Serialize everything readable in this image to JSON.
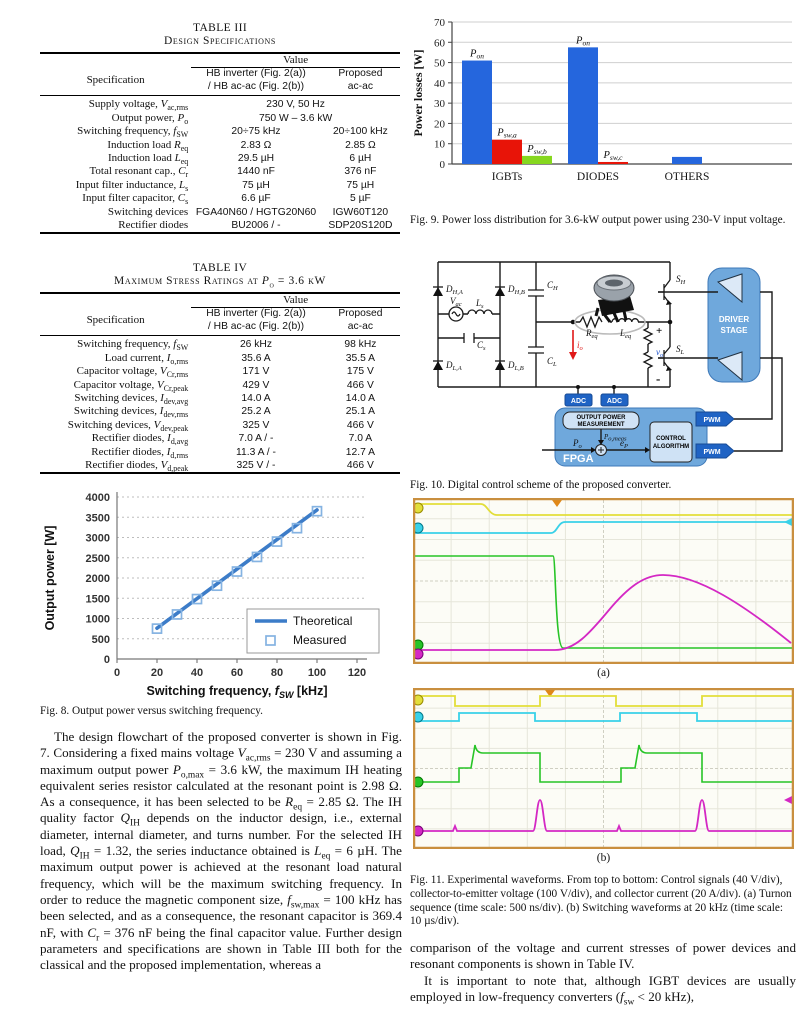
{
  "colors": {
    "bar_blue": "#2566dd",
    "bar_red": "#e81408",
    "bar_green": "#86d71f",
    "line_blue": "#3c7cc8",
    "marker_blue": "#85b3e2",
    "scope_border": "#c98f3f",
    "scope_bg": "#fcfcf6",
    "ch_yellow": "#e2de3a",
    "ch_cyan": "#39d1e8",
    "ch_green": "#27c427",
    "ch_magenta": "#d428c4",
    "io_red": "#e01818",
    "vo_blue": "#2255cc"
  },
  "table3": {
    "title1": "TABLE III",
    "title2": "Design Specifications",
    "value_label": "Value",
    "spec_label": "Specification",
    "col1_lines": [
      "HB inverter (Fig. 2(a))",
      "/ HB ac-ac (Fig. 2(b))"
    ],
    "col2_lines": [
      "Proposed",
      "ac-ac"
    ],
    "rows": [
      {
        "spec": "Supply voltage, _V_~ac,rms~",
        "span": "230 V, 50 Hz"
      },
      {
        "spec": "Output power, _P_~o~",
        "span": "750 W – 3.6 kW"
      },
      {
        "spec": "Switching frequency, _f_~SW~",
        "v1": "20÷75 kHz",
        "v2": "20÷100 kHz"
      },
      {
        "spec": "Induction load _R_~eq~",
        "v1": "2.83 Ω",
        "v2": "2.85 Ω"
      },
      {
        "spec": "Induction load _L_~eq~",
        "v1": "29.5 µH",
        "v2": "6 µH"
      },
      {
        "spec": "Total resonant cap., _C_~r~",
        "v1": "1440 nF",
        "v2": "376 nF"
      },
      {
        "spec": "Input filter inductance, _L_~s~",
        "v1": "75 µH",
        "v2": "75 µH"
      },
      {
        "spec": "Input filter capacitor, _C_~s~",
        "v1": "6.6 µF",
        "v2": "5 µF"
      },
      {
        "spec": "Switching devices",
        "v1": "FGA40N60 / HGTG20N60",
        "v2": "IGW60T120"
      },
      {
        "spec": "Rectifier diodes",
        "v1": "BU2006 / -",
        "v2": "SDP20S120D"
      }
    ]
  },
  "table4": {
    "title1": "TABLE IV",
    "title2": "Maximum Stress Ratings at _P_~o~ = 3.6 kW",
    "value_label": "Value",
    "spec_label": "Specification",
    "col1_lines": [
      "HB inverter (Fig. 2(a))",
      "/ HB ac-ac (Fig. 2(b))"
    ],
    "col2_lines": [
      "Proposed",
      "ac-ac"
    ],
    "rows": [
      {
        "spec": "Switching frequency, _f_~SW~",
        "v1": "26 kHz",
        "v2": "98 kHz"
      },
      {
        "spec": "Load current, _I_~o,rms~",
        "v1": "35.6 A",
        "v2": "35.5 A"
      },
      {
        "spec": "Capacitor voltage, _V_~Cr,rms~",
        "v1": "171 V",
        "v2": "175 V"
      },
      {
        "spec": "Capacitor voltage, _V_~Cr,peak~",
        "v1": "429 V",
        "v2": "466 V"
      },
      {
        "spec": "Switching devices, _I_~dev,avg~",
        "v1": "14.0 A",
        "v2": "14.0 A"
      },
      {
        "spec": "Switching devices, _I_~dev,rms~",
        "v1": "25.2 A",
        "v2": "25.1 A"
      },
      {
        "spec": "Switching devices, _V_~dev,peak~",
        "v1": "325 V",
        "v2": "466 V"
      },
      {
        "spec": "Rectifier diodes, _I_~d,avg~",
        "v1": "7.0 A / -",
        "v2": "7.0 A"
      },
      {
        "spec": "Rectifier diodes, _I_~d,rms~",
        "v1": "11.3 A / -",
        "v2": "12.7 A"
      },
      {
        "spec": "Rectifier diodes, _V_~d,peak~",
        "v1": "325 V / -",
        "v2": "466 V"
      }
    ]
  },
  "chart_data": [
    {
      "type": "line",
      "name": "fig8_output_power_vs_fsw",
      "xlabel_pre": "Switching frequency, ",
      "xlabel_var": "f",
      "xlabel_sub": "SW",
      "xlabel_post": " [kHz]",
      "ylabel": "Output power [W]",
      "xlim": [
        0,
        120
      ],
      "xticks": [
        0,
        20,
        40,
        60,
        80,
        100,
        120
      ],
      "ylim": [
        0,
        4000
      ],
      "yticks": [
        0,
        500,
        1000,
        1500,
        2000,
        2500,
        3000,
        3500,
        4000
      ],
      "grid": "horizontal-dashed",
      "legend_position": "lower right",
      "series": [
        {
          "name": "Theoretical",
          "type": "line",
          "x": [
            20,
            100
          ],
          "y": [
            760,
            3680
          ]
        },
        {
          "name": "Measured",
          "type": "scatter",
          "x": [
            20,
            30,
            40,
            50,
            60,
            70,
            80,
            90,
            100
          ],
          "y": [
            750,
            1100,
            1480,
            1810,
            2160,
            2520,
            2900,
            3230,
            3650
          ]
        }
      ]
    },
    {
      "type": "bar",
      "name": "fig9_power_loss_distribution",
      "ylabel": "Power losses [W]",
      "ylim": [
        0,
        70
      ],
      "yticks": [
        0,
        10,
        20,
        30,
        40,
        50,
        60,
        70
      ],
      "grid": "horizontal",
      "groups": [
        {
          "category": "IGBTs",
          "bars": [
            {
              "label_main": "P",
              "label_sub": "on",
              "value": 51,
              "color": "bar_blue"
            },
            {
              "label_main": "P",
              "label_sub": "sw,a",
              "value": 12,
              "color": "bar_red"
            },
            {
              "label_main": "P",
              "label_sub": "sw,b",
              "value": 4,
              "color": "bar_green"
            }
          ]
        },
        {
          "category": "DIODES",
          "bars": [
            {
              "label_main": "P",
              "label_sub": "on",
              "value": 57.5,
              "color": "bar_blue"
            },
            {
              "label_main": "P",
              "label_sub": "sw,c",
              "value": 1,
              "color": "bar_red"
            }
          ]
        },
        {
          "category": "OTHERS",
          "bars": [
            {
              "label_main": "",
              "label_sub": "",
              "value": 3.5,
              "color": "bar_blue"
            }
          ]
        }
      ]
    }
  ],
  "captions": {
    "fig8": "Fig. 8.   Output power versus switching frequency.",
    "fig9": "Fig. 9.   Power loss distribution for 3.6-kW output power using 230-V input voltage.",
    "fig10": "Fig. 10.   Digital control scheme of the proposed converter.",
    "fig11": "Fig. 11.   Experimental waveforms. From top to bottom: Control signals (40 V/div), collector-to-emitter voltage (100 V/div), and collector current (20 A/div). (a) Turnon sequence (time scale: 500 ns/div). (b) Switching waveforms at 20 kHz (time scale: 10 µs/div)."
  },
  "fig10": {
    "labels": {
      "dha": {
        "b": "D",
        "s": "H,A"
      },
      "dhb": {
        "b": "D",
        "s": "H,B"
      },
      "dla": {
        "b": "D",
        "s": "L,A"
      },
      "dlb": {
        "b": "D",
        "s": "L,B"
      },
      "vac": {
        "b": "V",
        "s": "ac"
      },
      "ls": {
        "b": "L",
        "s": "s"
      },
      "cs": {
        "b": "C",
        "s": "s"
      },
      "ch": {
        "b": "C",
        "s": "H"
      },
      "cl": {
        "b": "C",
        "s": "L"
      },
      "req": {
        "b": "R",
        "s": "eq"
      },
      "leq": {
        "b": "L",
        "s": "eq"
      },
      "io": {
        "b": "i",
        "s": "o"
      },
      "vo": {
        "b": "v",
        "s": "o"
      },
      "sh": {
        "b": "S",
        "s": "H"
      },
      "sl": {
        "b": "S",
        "s": "L"
      },
      "po": {
        "b": "P",
        "s": "o"
      },
      "pomeas": {
        "b": "P",
        "s": "o,meas"
      },
      "ep": {
        "b": "e",
        "s": "P"
      },
      "plus": "+",
      "minus": "-"
    },
    "blocks": {
      "driver1": "DRIVER",
      "driver2": "STAGE",
      "adc1": "ADC",
      "adc2": "ADC",
      "pwm1": "PWM",
      "pwm2": "PWM",
      "fpga": "FPGA",
      "opm1": "OUTPUT POWER",
      "opm2": "MEASUREMENT",
      "ca1": "CONTROL",
      "ca2": "ALGORITHM"
    }
  },
  "fig11": {
    "label_a": "(a)",
    "label_b": "(b)"
  },
  "body": {
    "left_p1": "The design flowchart of the proposed converter is shown in Fig. 7. Considering a fixed mains voltage _V_~ac,rms~ = 230 V and assuming a maximum output power _P_~o,max~ = 3.6 kW, the maximum IH heating equivalent series resistor calculated at the resonant point is 2.98 Ω. As a consequence, it has been selected to be _R_~eq~ = 2.85 Ω. The IH quality factor _Q_~IH~ depends on the inductor design, i.e., external diameter, internal diameter, and turns number. For the selected IH load, _Q_~IH~ = 1.32, the series inductance obtained is _L_~eq~ = 6 µH. The maximum output power is achieved at the resonant load natural frequency, which will be the maximum switching frequency. In order to reduce the magnetic component size, _f_~sw,max~ = 100 kHz has been selected, and as a consequence, the resonant capacitor is 369.4 nF, with _C_~r~ = 376 nF being the final capacitor value. Further design parameters and specifications are shown in Table III both for the classical and the proposed implementation, whereas a",
    "right_p1": "comparison of the voltage and current stresses of power devices and resonant components is shown in Table IV.",
    "right_p2": "It is important to note that, although IGBT devices are usually employed in low-frequency converters (_f_~sw~ < 20 kHz),"
  }
}
